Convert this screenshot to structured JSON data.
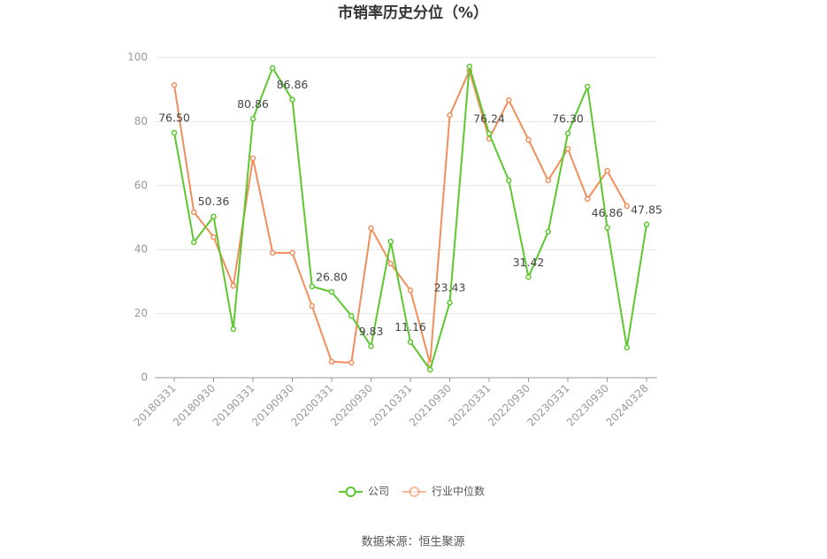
{
  "chart_data": {
    "type": "line",
    "title": "市销率历史分位（%）",
    "source": "数据来源：恒生聚源",
    "categories": [
      "20180331",
      null,
      "20180930",
      null,
      "20190331",
      null,
      "20190930",
      null,
      "20200331",
      null,
      "20200930",
      null,
      "20210331",
      null,
      "20210930",
      null,
      "20220331",
      null,
      "20220930",
      null,
      "20230331",
      null,
      "20230930",
      null,
      "20240328"
    ],
    "series": [
      {
        "name": "公司",
        "color": "#5cc72e",
        "values": [
          76.5,
          42.3,
          50.36,
          15.2,
          80.86,
          96.7,
          86.86,
          28.5,
          26.8,
          19.3,
          9.83,
          42.5,
          11.16,
          2.5,
          23.43,
          97.2,
          76.24,
          61.6,
          31.42,
          45.6,
          76.3,
          90.9,
          46.86,
          9.4,
          47.85
        ],
        "value_labels": [
          "76.50",
          null,
          "50.36",
          null,
          "80.86",
          null,
          "86.86",
          null,
          "26.80",
          null,
          "9.83",
          null,
          "11.16",
          null,
          "23.43",
          null,
          "76.24",
          null,
          "31.42",
          null,
          "76.30",
          null,
          "46.86",
          null,
          "47.85"
        ]
      },
      {
        "name": "行业中位数",
        "color": "#f28e5c",
        "values": [
          91.4,
          51.7,
          43.9,
          28.7,
          68.5,
          39.0,
          39.0,
          22.4,
          5.0,
          4.7,
          46.7,
          35.6,
          27.3,
          4.4,
          82.0,
          95.9,
          74.6,
          86.7,
          74.3,
          61.6,
          71.5,
          55.8,
          64.6,
          53.6,
          null
        ]
      }
    ],
    "ylim": [
      0,
      100
    ],
    "yticks": [
      0,
      20,
      40,
      60,
      80,
      100
    ],
    "grid": true,
    "legend": "bottom"
  }
}
